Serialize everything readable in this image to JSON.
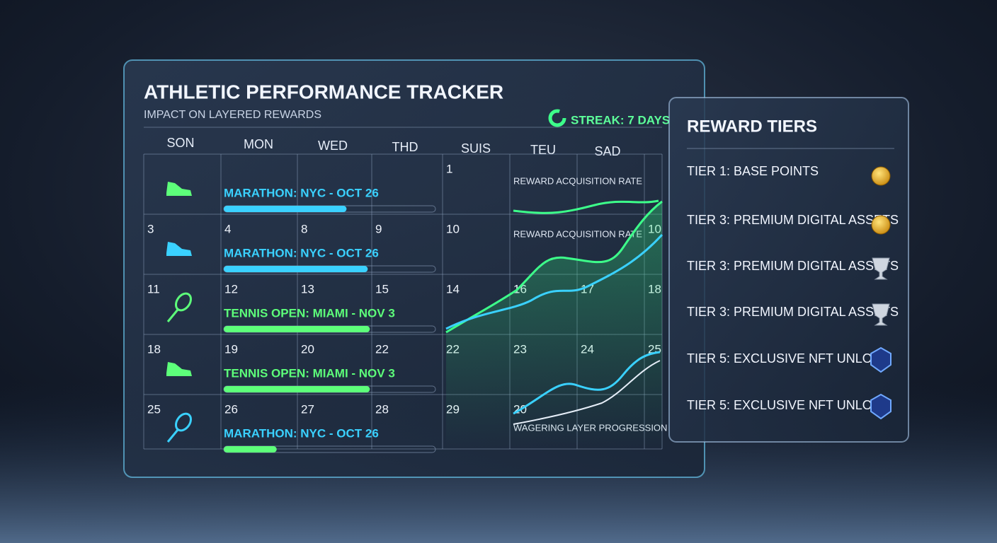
{
  "header": {
    "title": "ATHLETIC PERFORMANCE TRACKER",
    "subtitle": "IMPACT ON LAYERED REWARDS",
    "streak": "STREAK: 7 DAYS"
  },
  "calendar": {
    "days": [
      "SON",
      "MON",
      "WED",
      "THD",
      "SUIS",
      "TEU",
      "SAD"
    ],
    "rows": [
      {
        "dates": [
          1
        ],
        "event": {
          "label": "MARATHON: NYC - OCT 26",
          "progress": 58
        }
      },
      {
        "dates": [
          3,
          4,
          8,
          9,
          10,
          10
        ],
        "event": {
          "label": "MARATHON: NYC - OCT 26",
          "progress": 68
        }
      },
      {
        "dates": [
          11,
          12,
          13,
          15,
          14,
          16,
          17,
          18
        ],
        "event": {
          "label": "TENNIS OPEN: MIAMI - NOV 3",
          "progress": 69
        }
      },
      {
        "dates": [
          18,
          19,
          20,
          22,
          22,
          23,
          24,
          25
        ],
        "event": {
          "label": "TENNIS OPEN: MIAMI - NOV 3",
          "progress": 69
        }
      },
      {
        "dates": [
          25,
          26,
          27,
          28,
          29,
          20
        ],
        "event": {
          "label": "MARATHON: NYC - OCT 26",
          "progress": 25
        }
      }
    ]
  },
  "charts": {
    "labels": [
      "REWARD ACQUISITION RATE",
      "REWARD ACQUISITION RATE",
      "WAGERING LAYER PROGRESSION"
    ]
  },
  "rewards": {
    "title": "REWARD TIERS",
    "tiers": [
      "TIER 1: BASE POINTS",
      "TIER 3: PREMIUM DIGITAL ASSETS",
      "TIER 3: PREMIUM DIGITAL ASSETS",
      "TIER 3: PREMIUM DIGITAL ASSETS",
      "TIER 5: EXCLUSIVE NFT UNLOCK",
      "TIER 5: EXCLUSIVE NFT UNLOCK"
    ]
  }
}
